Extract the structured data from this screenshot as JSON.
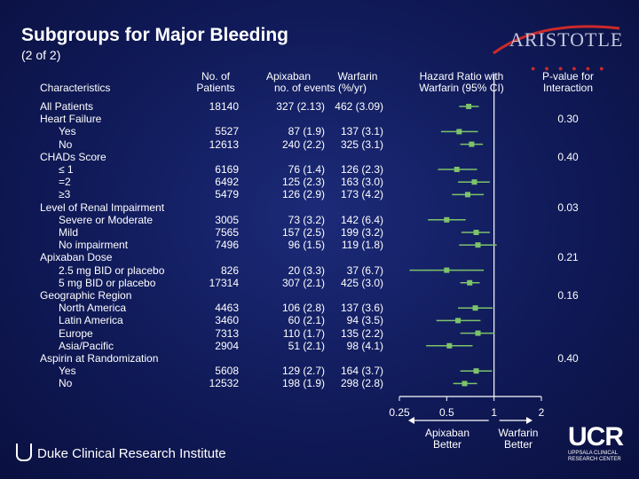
{
  "title": "Subgroups for Major Bleeding",
  "subtitle": "(2 of 2)",
  "logos": {
    "aristotle": "ARISTOTLE",
    "duke": "Duke Clinical Research Institute",
    "ucr_big": "UCR",
    "ucr_small_1": "UPPSALA CLINICAL",
    "ucr_small_2": "RESEARCH CENTER"
  },
  "headers": {
    "characteristics": "Characteristics",
    "patients_1": "No. of",
    "patients_2": "Patients",
    "apixaban": "Apixaban",
    "warfarin": "Warfarin",
    "events": "no. of events (%/yr)",
    "hr_1": "Hazard Ratio with",
    "hr_2": "Warfarin (95% CI)",
    "p_1": "P-value for",
    "p_2": "Interaction"
  },
  "rows": [
    {
      "label": "All Patients",
      "n": "18140",
      "apix": "327 (2.13)",
      "warf": "462 (3.09)",
      "p": ""
    },
    {
      "label": "Heart Failure",
      "n": "",
      "apix": "",
      "warf": "",
      "p": "0.30"
    },
    {
      "label": "Yes",
      "n": "5527",
      "apix": "87 (1.9)",
      "warf": "137 (3.1)",
      "p": ""
    },
    {
      "label": "No",
      "n": "12613",
      "apix": "240 (2.2)",
      "warf": "325 (3.1)",
      "p": ""
    },
    {
      "label": "CHADs Score",
      "n": "",
      "apix": "",
      "warf": "",
      "p": "0.40"
    },
    {
      "label": "≤ 1",
      "n": "6169",
      "apix": "76 (1.4)",
      "warf": "126 (2.3)",
      "p": ""
    },
    {
      "label": "=2",
      "n": "6492",
      "apix": "125 (2.3)",
      "warf": "163 (3.0)",
      "p": ""
    },
    {
      "label": "≥3",
      "n": "5479",
      "apix": "126 (2.9)",
      "warf": "173 (4.2)",
      "p": ""
    },
    {
      "label": "Level of Renal Impairment",
      "n": "",
      "apix": "",
      "warf": "",
      "p": "0.03"
    },
    {
      "label": "Severe or Moderate",
      "n": "3005",
      "apix": "73 (3.2)",
      "warf": "142 (6.4)",
      "p": ""
    },
    {
      "label": "Mild",
      "n": "7565",
      "apix": "157 (2.5)",
      "warf": "199 (3.2)",
      "p": ""
    },
    {
      "label": "No impairment",
      "n": "7496",
      "apix": "96 (1.5)",
      "warf": "119 (1.8)",
      "p": ""
    },
    {
      "label": "Apixaban Dose",
      "n": "",
      "apix": "",
      "warf": "",
      "p": "0.21"
    },
    {
      "label": "2.5 mg BID or placebo",
      "n": "826",
      "apix": "20 (3.3)",
      "warf": "37 (6.7)",
      "p": ""
    },
    {
      "label": "5 mg BID or placebo",
      "n": "17314",
      "apix": "307 (2.1)",
      "warf": "425 (3.0)",
      "p": ""
    },
    {
      "label": "Geographic Region",
      "n": "",
      "apix": "",
      "warf": "",
      "p": "0.16"
    },
    {
      "label": "North America",
      "n": "4463",
      "apix": "106 (2.8)",
      "warf": "137 (3.6)",
      "p": ""
    },
    {
      "label": "Latin America",
      "n": "3460",
      "apix": "60 (2.1)",
      "warf": "94 (3.5)",
      "p": ""
    },
    {
      "label": "Europe",
      "n": "7313",
      "apix": "110 (1.7)",
      "warf": "135 (2.2)",
      "p": ""
    },
    {
      "label": "Asia/Pacific",
      "n": "2904",
      "apix": "51 (2.1)",
      "warf": "98 (4.1)",
      "p": ""
    },
    {
      "label": "Aspirin at Randomization",
      "n": "",
      "apix": "",
      "warf": "",
      "p": "0.40"
    },
    {
      "label": "Yes",
      "n": "5608",
      "apix": "129 (2.7)",
      "warf": "164 (3.7)",
      "p": ""
    },
    {
      "label": "No",
      "n": "12532",
      "apix": "198 (1.9)",
      "warf": "298 (2.8)",
      "p": ""
    }
  ],
  "chart_data": {
    "type": "forest",
    "x_scale": "log",
    "xlim": [
      0.25,
      2
    ],
    "x_ticks": [
      "0.25",
      "0.5",
      "1",
      "2"
    ],
    "reference_line": 1,
    "xlabel_left": "Apixaban Better",
    "xlabel_right": "Warfarin Better",
    "marker_color": "#7cc36b",
    "points": [
      {
        "row": 0,
        "hr": 0.69,
        "lo": 0.6,
        "hi": 0.8
      },
      {
        "row": 2,
        "hr": 0.6,
        "lo": 0.46,
        "hi": 0.79
      },
      {
        "row": 3,
        "hr": 0.72,
        "lo": 0.61,
        "hi": 0.85
      },
      {
        "row": 5,
        "hr": 0.58,
        "lo": 0.44,
        "hi": 0.78
      },
      {
        "row": 6,
        "hr": 0.75,
        "lo": 0.59,
        "hi": 0.94
      },
      {
        "row": 7,
        "hr": 0.68,
        "lo": 0.54,
        "hi": 0.86
      },
      {
        "row": 9,
        "hr": 0.5,
        "lo": 0.38,
        "hi": 0.66
      },
      {
        "row": 10,
        "hr": 0.77,
        "lo": 0.62,
        "hi": 0.94
      },
      {
        "row": 11,
        "hr": 0.79,
        "lo": 0.6,
        "hi": 1.04
      },
      {
        "row": 13,
        "hr": 0.5,
        "lo": 0.29,
        "hi": 0.86
      },
      {
        "row": 14,
        "hr": 0.7,
        "lo": 0.61,
        "hi": 0.81
      },
      {
        "row": 16,
        "hr": 0.76,
        "lo": 0.59,
        "hi": 0.98
      },
      {
        "row": 17,
        "hr": 0.59,
        "lo": 0.43,
        "hi": 0.82
      },
      {
        "row": 18,
        "hr": 0.79,
        "lo": 0.61,
        "hi": 1.01
      },
      {
        "row": 19,
        "hr": 0.52,
        "lo": 0.37,
        "hi": 0.73
      },
      {
        "row": 21,
        "hr": 0.77,
        "lo": 0.61,
        "hi": 0.97
      },
      {
        "row": 22,
        "hr": 0.65,
        "lo": 0.55,
        "hi": 0.78
      }
    ]
  }
}
